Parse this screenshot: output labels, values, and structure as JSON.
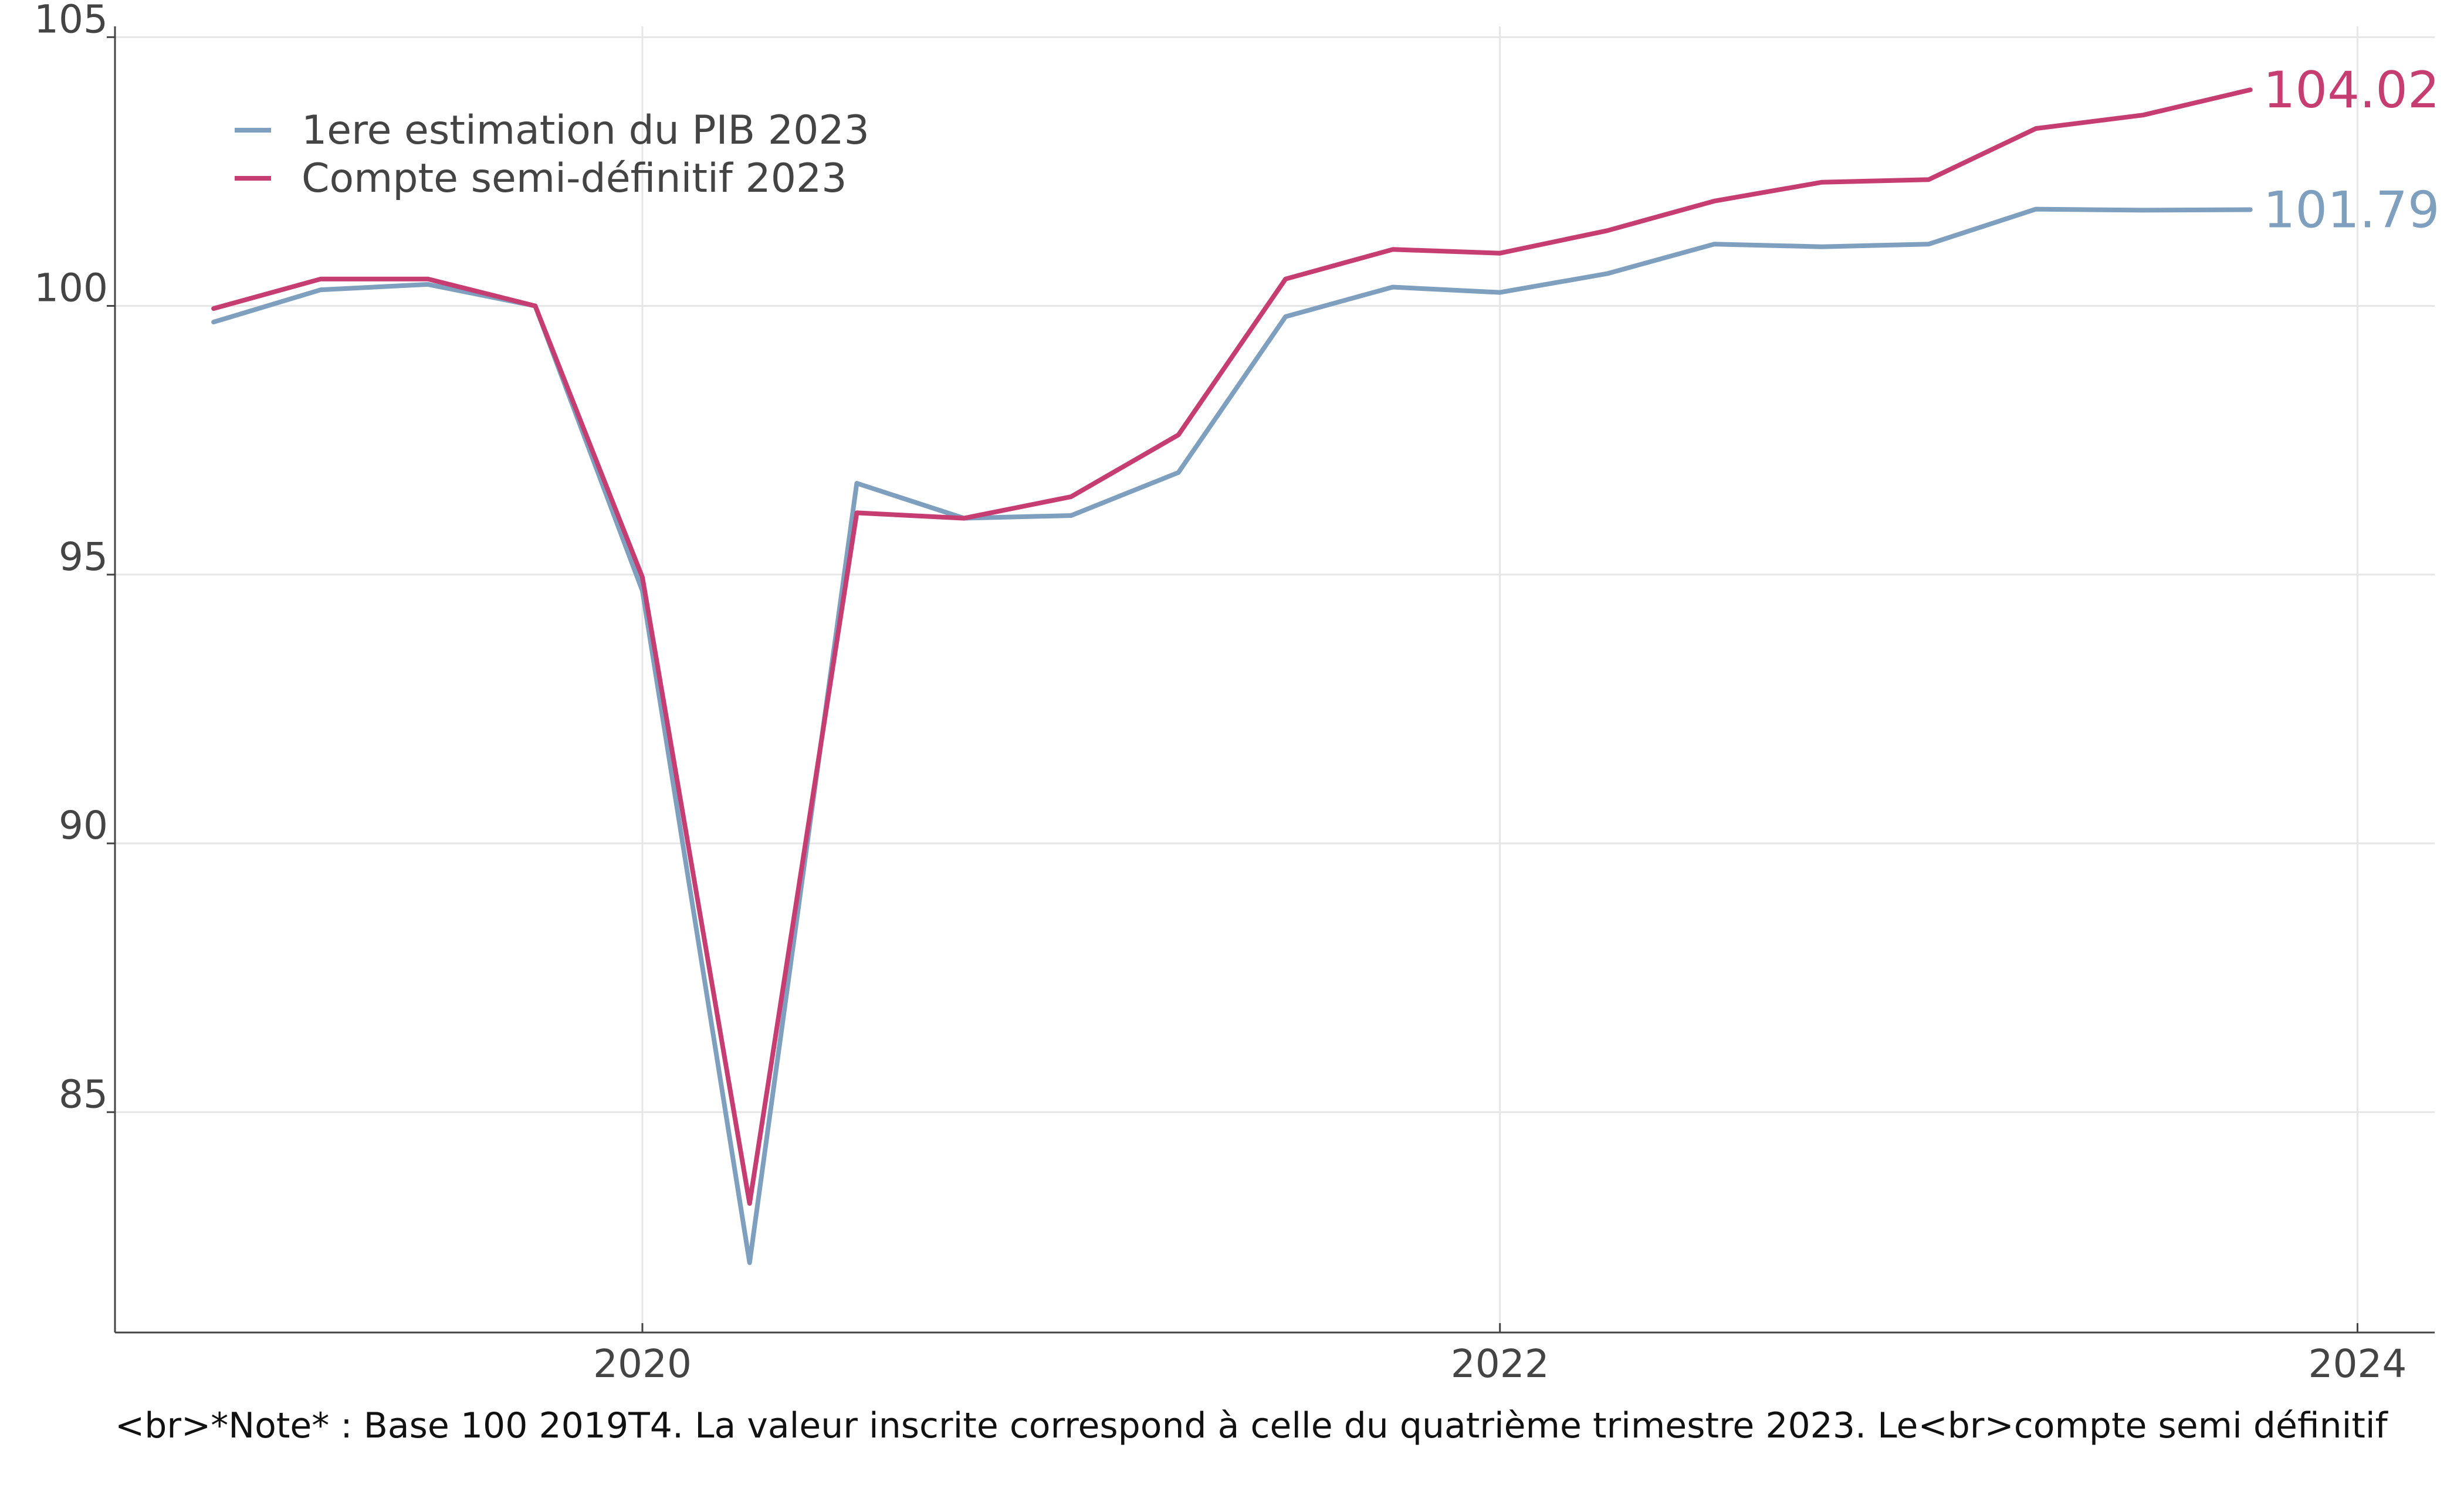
{
  "chart_data": {
    "type": "line",
    "title": "",
    "xlabel": "",
    "ylabel": "",
    "x": [
      "2019T1",
      "2019T2",
      "2019T3",
      "2019T4",
      "2020T1",
      "2020T2",
      "2020T3",
      "2020T4",
      "2021T1",
      "2021T2",
      "2021T3",
      "2021T4",
      "2022T1",
      "2022T2",
      "2022T3",
      "2022T4",
      "2023T1",
      "2023T2",
      "2023T3",
      "2023T4"
    ],
    "x_ticks": [
      {
        "value": 2020,
        "label": "2020"
      },
      {
        "value": 2022,
        "label": "2022"
      },
      {
        "value": 2024,
        "label": "2024"
      }
    ],
    "xlim": [
      2018.77,
      2024.18
    ],
    "y_ticks": [
      {
        "value": 85,
        "label": "85"
      },
      {
        "value": 90,
        "label": "90"
      },
      {
        "value": 95,
        "label": "95"
      },
      {
        "value": 100,
        "label": "100"
      },
      {
        "value": 105,
        "label": "105"
      }
    ],
    "ylim": [
      80.9,
      105.2
    ],
    "grid": true,
    "legend_position": "top-left",
    "series": [
      {
        "name": "1ere estimation du PIB 2023",
        "color": "#7f9fbf",
        "values": [
          99.7,
          100.3,
          100.4,
          100.0,
          94.7,
          82.2,
          96.7,
          96.05,
          96.1,
          96.9,
          99.8,
          100.35,
          100.25,
          100.6,
          101.15,
          101.1,
          101.15,
          101.8,
          101.78,
          101.79
        ],
        "end_label": "101.79"
      },
      {
        "name": "Compte semi-définitif 2023",
        "color": "#c63d72",
        "values": [
          99.95,
          100.5,
          100.5,
          100.0,
          94.95,
          83.3,
          96.15,
          96.05,
          96.45,
          97.6,
          100.5,
          101.05,
          100.98,
          101.4,
          101.95,
          102.3,
          102.35,
          103.3,
          103.55,
          104.02
        ],
        "end_label": "104.02"
      }
    ]
  },
  "footnote": "<br>*Note* : Base 100 2019T4. La valeur inscrite correspond à celle du quatrième trimestre 2023. Le<br>compte semi définitif"
}
